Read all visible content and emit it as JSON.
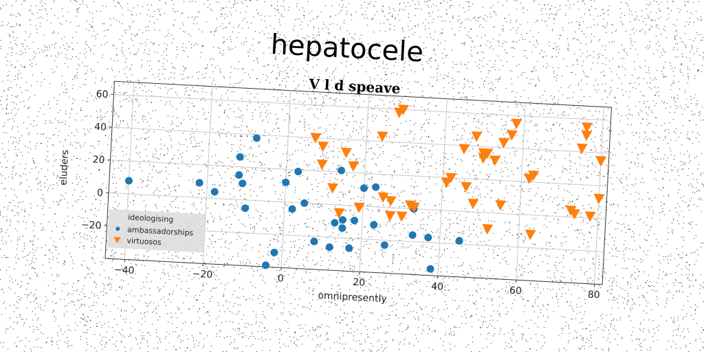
{
  "chart_data": {
    "type": "scatter",
    "title": "hepatocele",
    "subtitle": "V l d speave",
    "xlabel": "omnipresently",
    "ylabel": "eluders",
    "xlim": [
      -45,
      82
    ],
    "ylim": [
      -40,
      68
    ],
    "xticks": [
      -40,
      -20,
      0,
      20,
      40,
      60,
      80
    ],
    "yticks": [
      -20,
      0,
      20,
      40,
      60
    ],
    "grid": true,
    "legend": {
      "placement": "lower-left",
      "title": "ideologising",
      "entries": [
        "ambassadorships",
        "virtuosos"
      ]
    },
    "colors": {
      "ambassadorships": "#1f77b4",
      "virtuosos": "#ff7f0e"
    },
    "series": [
      {
        "name": "ambassadorships",
        "marker": "circle",
        "points": [
          [
            -40,
            8
          ],
          [
            -22,
            9
          ],
          [
            -18,
            4
          ],
          [
            -12,
            26
          ],
          [
            -12,
            15
          ],
          [
            -11,
            10
          ],
          [
            -10,
            -5
          ],
          [
            -8,
            38
          ],
          [
            -4,
            -39
          ],
          [
            -2,
            -31
          ],
          [
            0,
            12
          ],
          [
            2,
            -4
          ],
          [
            3,
            19
          ],
          [
            5,
            0
          ],
          [
            8,
            -23
          ],
          [
            12,
            -26
          ],
          [
            13,
            -11
          ],
          [
            14,
            21
          ],
          [
            15,
            -14
          ],
          [
            15,
            -9
          ],
          [
            17,
            -26
          ],
          [
            18,
            -9
          ],
          [
            20,
            11
          ],
          [
            23,
            12
          ],
          [
            23,
            -11
          ],
          [
            26,
            -23
          ],
          [
            33,
            0
          ],
          [
            33,
            -16
          ],
          [
            37,
            -17
          ],
          [
            38,
            -36
          ],
          [
            45,
            -18
          ]
        ]
      },
      {
        "name": "virtuosos",
        "marker": "triangle-down",
        "points": [
          [
            7,
            40
          ],
          [
            9,
            35
          ],
          [
            9,
            24
          ],
          [
            12,
            10
          ],
          [
            14,
            -5
          ],
          [
            15,
            32
          ],
          [
            17,
            24
          ],
          [
            19,
            -1
          ],
          [
            24,
            43
          ],
          [
            25,
            6
          ],
          [
            27,
            4
          ],
          [
            27,
            -5
          ],
          [
            28,
            58
          ],
          [
            29,
            60
          ],
          [
            30,
            -5
          ],
          [
            32,
            2
          ],
          [
            33,
            1
          ],
          [
            41,
            17
          ],
          [
            42,
            20
          ],
          [
            45,
            38
          ],
          [
            46,
            15
          ],
          [
            48,
            46
          ],
          [
            48,
            5
          ],
          [
            50,
            33
          ],
          [
            50,
            36
          ],
          [
            51,
            36
          ],
          [
            52,
            -10
          ],
          [
            53,
            32
          ],
          [
            55,
            5
          ],
          [
            55,
            43
          ],
          [
            57,
            48
          ],
          [
            58,
            55
          ],
          [
            62,
            22
          ],
          [
            63,
            24
          ],
          [
            63,
            -12
          ],
          [
            73,
            4
          ],
          [
            74,
            2
          ],
          [
            75,
            42
          ],
          [
            76,
            50
          ],
          [
            76,
            55
          ],
          [
            78,
            1
          ],
          [
            80,
            35
          ],
          [
            80,
            12
          ]
        ]
      }
    ]
  }
}
